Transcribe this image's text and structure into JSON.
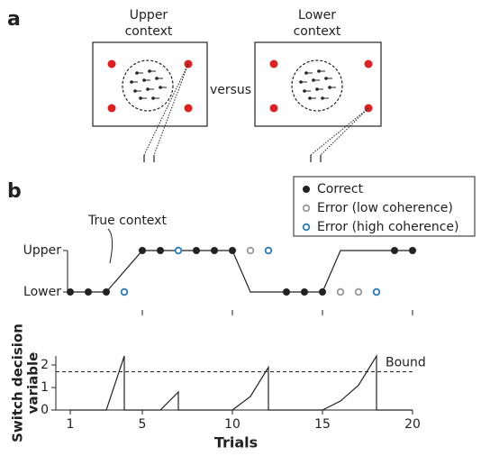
{
  "panel_a": {
    "label": "a",
    "left_title": [
      "Upper",
      "context"
    ],
    "right_title": [
      "Lower",
      "context"
    ],
    "versus": "versus"
  },
  "panel_b": {
    "label": "b"
  },
  "chart_data": [
    {
      "type": "scatter",
      "ylim": [
        0,
        1
      ],
      "yticks": [
        {
          "value": 1,
          "label": "Upper"
        },
        {
          "value": 0,
          "label": "Lower"
        }
      ],
      "xlim": [
        1,
        20
      ],
      "xticks": [
        5,
        10,
        15,
        20
      ],
      "context_line": {
        "name": "True context",
        "color": "#222222",
        "x": [
          1,
          3,
          5,
          10,
          11,
          15,
          16,
          20
        ],
        "values": [
          0,
          0,
          1,
          1,
          0,
          0,
          1,
          1
        ]
      },
      "series": [
        {
          "name": "Correct",
          "color": "#222222",
          "marker": "filled",
          "x": [
            1,
            2,
            3,
            5,
            6,
            8,
            9,
            10,
            13,
            14,
            15,
            19,
            20
          ],
          "values": [
            0,
            0,
            0,
            1,
            1,
            1,
            1,
            1,
            0,
            0,
            0,
            1,
            1
          ]
        },
        {
          "name": "Error (low coherence)",
          "color": "#999999",
          "marker": "open",
          "x": [
            11,
            16,
            17
          ],
          "values": [
            1,
            0,
            0
          ]
        },
        {
          "name": "Error (high coherence)",
          "color": "#2b7bbb",
          "marker": "open",
          "x": [
            4,
            7,
            12,
            18
          ],
          "values": [
            0,
            1,
            1,
            0
          ]
        }
      ]
    },
    {
      "type": "line",
      "xlabel": "Trials",
      "ylabel": [
        "Switch decision",
        "variable"
      ],
      "xlim": [
        1,
        20
      ],
      "xticks": [
        1,
        5,
        10,
        15,
        20
      ],
      "ylim": [
        0,
        2.4
      ],
      "yticks": [
        0,
        1,
        2
      ],
      "bound": {
        "label": "Bound",
        "value": 1.7
      },
      "series": [
        {
          "color": "#222222",
          "x": [
            1,
            3,
            4,
            4,
            6,
            7,
            7,
            10,
            11,
            12,
            12,
            15,
            16,
            17,
            18,
            18,
            20
          ],
          "values": [
            0,
            0,
            2.4,
            0,
            0,
            0.8,
            0,
            0,
            0.6,
            1.9,
            0,
            0,
            0.4,
            1.1,
            2.4,
            0,
            0
          ]
        }
      ]
    }
  ]
}
